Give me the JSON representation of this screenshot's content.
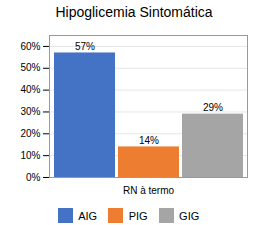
{
  "chart_data": {
    "type": "bar",
    "title": "Hipoglicemia Sintomática",
    "categories": [
      "RN à termo"
    ],
    "series": [
      {
        "name": "AIG",
        "color": "#4472C4",
        "values": [
          57
        ],
        "value_labels": [
          "57%"
        ]
      },
      {
        "name": "PIG",
        "color": "#ED7D31",
        "values": [
          14
        ],
        "value_labels": [
          "14%"
        ]
      },
      {
        "name": "GIG",
        "color": "#A5A5A5",
        "values": [
          29
        ],
        "value_labels": [
          "29%"
        ]
      }
    ],
    "ylim": [
      0,
      65
    ],
    "yticks": [
      {
        "value": 0,
        "label": "0%"
      },
      {
        "value": 10,
        "label": "10%"
      },
      {
        "value": 20,
        "label": "20%"
      },
      {
        "value": 30,
        "label": "30%"
      },
      {
        "value": 40,
        "label": "40%"
      },
      {
        "value": 50,
        "label": "50%"
      },
      {
        "value": 60,
        "label": "60%"
      }
    ],
    "grid": true,
    "data_labels": true,
    "legend": "bottom"
  }
}
